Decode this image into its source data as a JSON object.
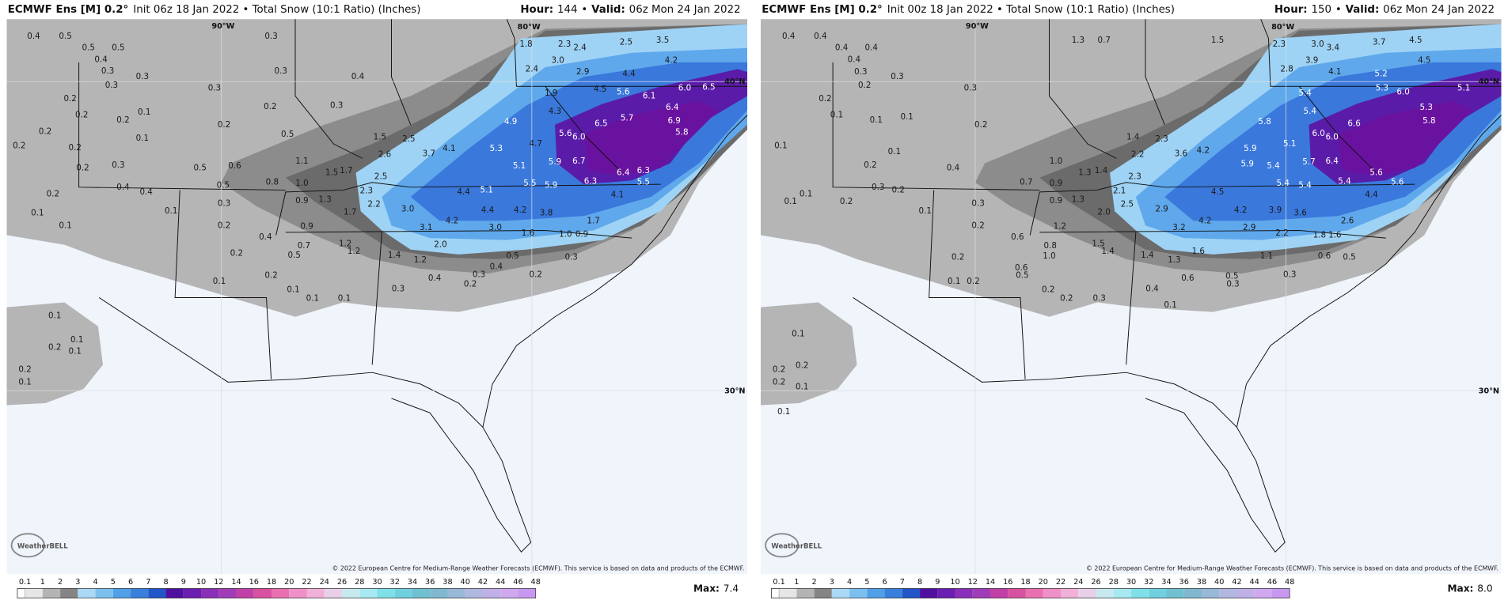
{
  "panels": [
    {
      "title": "ECMWF Ens [M] 0.2°",
      "subtitle": "Init 06z 18 Jan 2022 • Total Snow (10:1 Ratio) (Inches)",
      "hour_label": "Hour:",
      "hour": "144",
      "separator": "•",
      "valid_label": "Valid:",
      "valid": "06z Mon 24 Jan 2022",
      "lon_labels": [
        "90°W",
        "80°W"
      ],
      "lat_labels": [
        "40°N",
        "30°N"
      ],
      "point_values": [
        "0.4",
        "0.5",
        "0.5",
        "0.5",
        "0.4",
        "0.3",
        "0.3",
        "0.3",
        "0.2",
        "0.2",
        "0.2",
        "0.1",
        "0.2",
        "0.2",
        "0.2",
        "0.1",
        "0.2",
        "0.3",
        "0.4",
        "0.4",
        "0.2",
        "0.1",
        "0.1",
        "0.1",
        "0.5",
        "0.2",
        "0.3",
        "0.3",
        "0.3",
        "0.4",
        "0.3",
        "1.8",
        "2.3",
        "2.4",
        "2.5",
        "3.5",
        "3.0",
        "2.9",
        "4.4",
        "4.2",
        "2.4",
        "1.9",
        "4.5",
        "5.6",
        "6.1",
        "6.0",
        "6.5",
        "4.3",
        "4.9",
        "6.5",
        "5.7",
        "6.4",
        "6.9",
        "5.6",
        "6.0",
        "4.7",
        "5.3",
        "5.8",
        "5.9",
        "6.7",
        "5.1",
        "3.7",
        "4.1",
        "2.5",
        "2.6",
        "1.5",
        "2.5",
        "1.7",
        "1.5",
        "1.1",
        "0.8",
        "1.0",
        "1.3",
        "0.9",
        "2.3",
        "2.2",
        "1.7",
        "3.0",
        "4.4",
        "5.1",
        "5.5",
        "5.9",
        "6.3",
        "6.4",
        "6.3",
        "5.5",
        "4.1",
        "4.4",
        "4.2",
        "3.8",
        "4.2",
        "3.1",
        "3.0",
        "1.6",
        "1.0",
        "0.9",
        "1.7",
        "0.9",
        "1.2",
        "1.2",
        "2.0",
        "1.4",
        "1.2",
        "0.5",
        "0.4",
        "0.3",
        "0.2",
        "0.2",
        "0.3",
        "0.4",
        "0.3",
        "0.1",
        "0.1",
        "0.1",
        "0.2",
        "0.5",
        "0.7",
        "0.4",
        "0.2",
        "0.1",
        "0.1",
        "0.1",
        "0.2",
        "0.1",
        "0.2",
        "0.1",
        "0.3",
        "0.2",
        "0.5",
        "0.6",
        "0.5",
        "0.2"
      ],
      "copyright": "© 2022 European Centre for Medium-Range Weather Forecasts (ECMWF). This service is based on data and products of the ECMWF.",
      "logo": "WeatherBELL",
      "colorbar_labels": [
        "0.1",
        "1",
        "2",
        "3",
        "4",
        "5",
        "6",
        "7",
        "8",
        "9",
        "10",
        "12",
        "14",
        "16",
        "18",
        "20",
        "22",
        "24",
        "26",
        "28",
        "30",
        "32",
        "34",
        "36",
        "38",
        "40",
        "42",
        "44",
        "46",
        "48"
      ],
      "max_label": "Max:",
      "max": "7.4"
    },
    {
      "title": "ECMWF Ens [M] 0.2°",
      "subtitle": "Init 00z 18 Jan 2022 • Total Snow (10:1 Ratio) (Inches)",
      "hour_label": "Hour:",
      "hour": "150",
      "separator": "•",
      "valid_label": "Valid:",
      "valid": "06z Mon 24 Jan 2022",
      "lon_labels": [
        "90°W",
        "80°W"
      ],
      "lat_labels": [
        "40°N",
        "30°N"
      ],
      "point_values": [
        "0.4",
        "0.4",
        "0.4",
        "0.4",
        "0.4",
        "0.3",
        "0.3",
        "0.2",
        "0.2",
        "0.1",
        "0.1",
        "0.1",
        "0.1",
        "0.1",
        "0.2",
        "0.3",
        "0.2",
        "0.1",
        "0.1",
        "0.2",
        "0.1",
        "0.4",
        "0.2",
        "0.3",
        "1.3",
        "0.7",
        "1.5",
        "2.3",
        "3.0",
        "3.4",
        "3.7",
        "4.5",
        "3.9",
        "4.1",
        "5.2",
        "4.5",
        "2.8",
        "5.3",
        "6.0",
        "5.1",
        "5.4",
        "5.4",
        "5.8",
        "6.6",
        "5.3",
        "5.8",
        "6.0",
        "6.0",
        "5.1",
        "5.9",
        "4.2",
        "3.6",
        "5.4",
        "5.7",
        "6.4",
        "5.9",
        "2.3",
        "2.2",
        "1.4",
        "1.4",
        "1.3",
        "2.3",
        "1.0",
        "0.7",
        "0.9",
        "1.3",
        "0.9",
        "2.1",
        "2.5",
        "2.0",
        "2.9",
        "4.5",
        "5.4",
        "5.4",
        "5.4",
        "5.6",
        "5.6",
        "4.4",
        "4.2",
        "3.9",
        "3.6",
        "4.2",
        "3.2",
        "2.9",
        "2.2",
        "1.8",
        "1.6",
        "2.6",
        "1.2",
        "1.5",
        "1.4",
        "1.6",
        "1.4",
        "1.3",
        "1.1",
        "0.6",
        "0.5",
        "0.5",
        "0.3",
        "0.3",
        "0.4",
        "0.6",
        "0.1",
        "0.3",
        "0.2",
        "0.2",
        "0.6",
        "0.5",
        "1.0",
        "0.8",
        "0.6",
        "0.2",
        "0.1",
        "0.2",
        "0.1",
        "0.2",
        "0.2",
        "0.2",
        "0.1",
        "0.1",
        "0.3",
        "0.2"
      ],
      "copyright": "© 2022 European Centre for Medium-Range Weather Forecasts (ECMWF). This service is based on data and products of the ECMWF.",
      "logo": "WeatherBELL",
      "colorbar_labels": [
        "0.1",
        "1",
        "2",
        "3",
        "4",
        "5",
        "6",
        "7",
        "8",
        "9",
        "10",
        "12",
        "14",
        "16",
        "18",
        "20",
        "22",
        "24",
        "26",
        "28",
        "30",
        "32",
        "34",
        "36",
        "38",
        "40",
        "42",
        "44",
        "46",
        "48"
      ],
      "max_label": "Max:",
      "max": "8.0"
    }
  ]
}
